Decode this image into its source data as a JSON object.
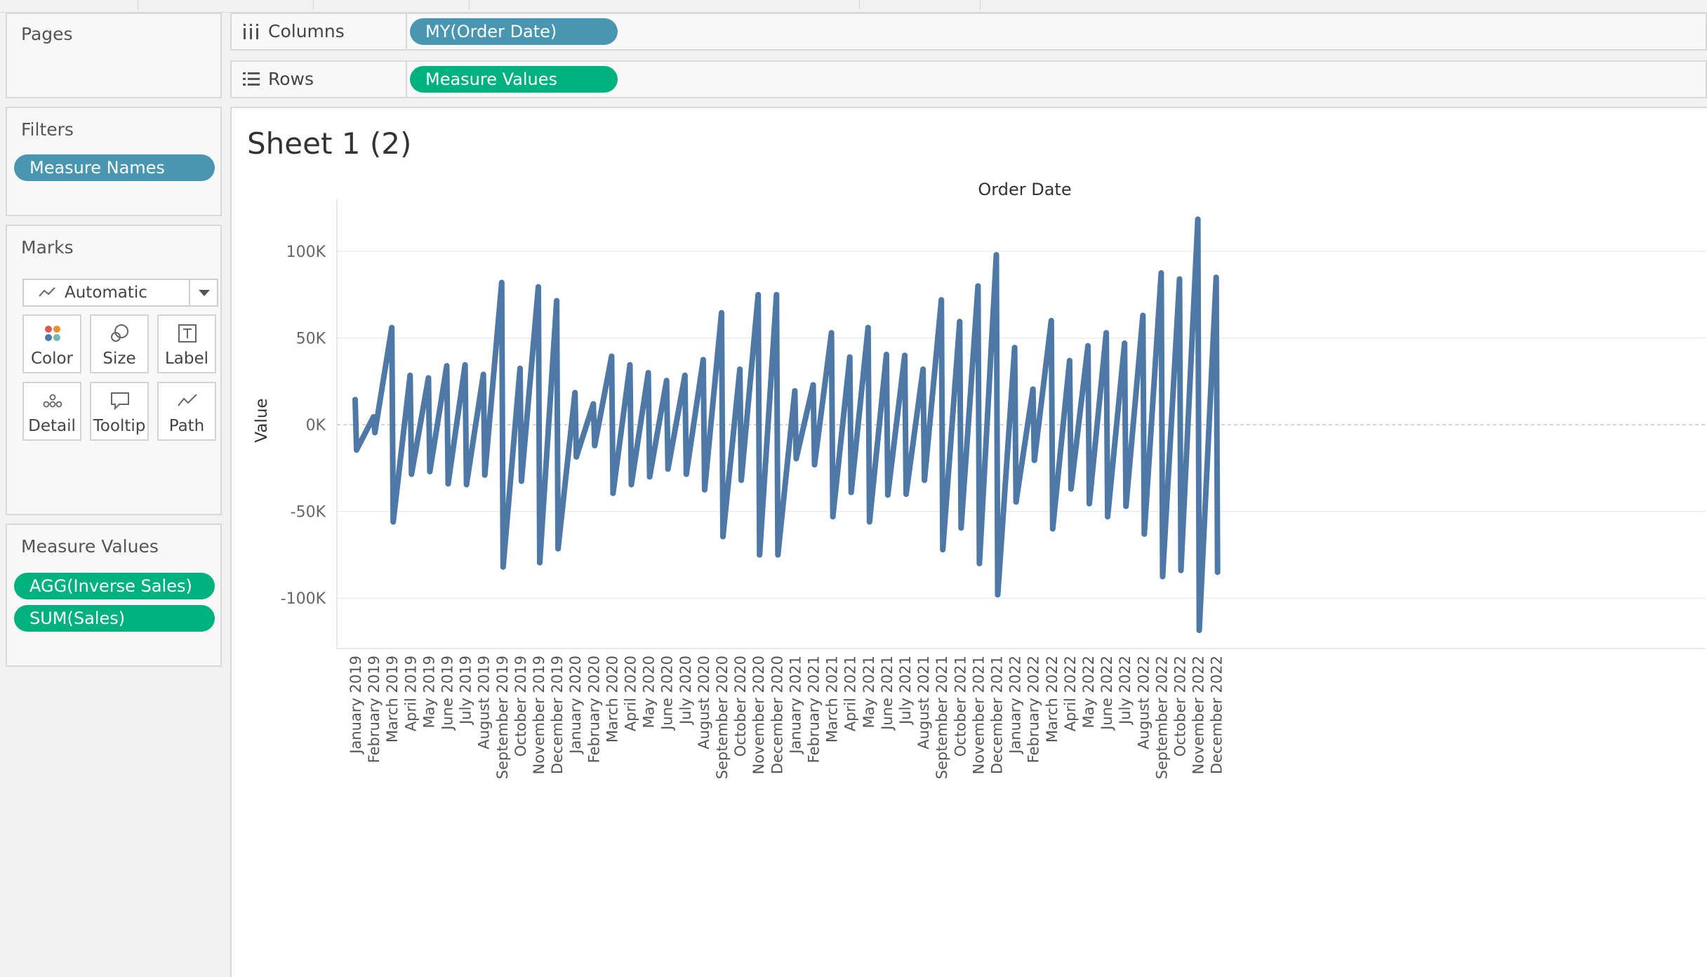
{
  "pages": {
    "title": "Pages"
  },
  "filters": {
    "title": "Filters",
    "pills": [
      "Measure Names"
    ]
  },
  "marks": {
    "title": "Marks",
    "type_label": "Automatic",
    "buttons": {
      "color": "Color",
      "size": "Size",
      "label": "Label",
      "detail": "Detail",
      "tooltip": "Tooltip",
      "path": "Path"
    }
  },
  "measure_values": {
    "title": "Measure Values",
    "pills": [
      "AGG(Inverse Sales)",
      "SUM(Sales)"
    ]
  },
  "shelves": {
    "columns": {
      "label": "Columns",
      "pill": "MY(Order Date)"
    },
    "rows": {
      "label": "Rows",
      "pill": "Measure Values"
    }
  },
  "sheet": {
    "title": "Sheet 1 (2)"
  },
  "colors": {
    "line": "#4e79a7",
    "pill_blue": "#4996b2",
    "pill_green": "#00b180"
  },
  "chart_data": {
    "type": "line",
    "title": "",
    "column_header": "Order Date",
    "ylabel": "Value",
    "xlabel": "",
    "ylim": [
      -125000,
      130000
    ],
    "yticks": [
      100000,
      50000,
      0,
      -50000,
      -100000
    ],
    "ytick_labels": [
      "100K",
      "50K",
      "0K",
      "-50K",
      "-100K"
    ],
    "grid": true,
    "categories": [
      "January 2019",
      "February 2019",
      "March 2019",
      "April 2019",
      "May 2019",
      "June 2019",
      "July 2019",
      "August 2019",
      "September 2019",
      "October 2019",
      "November 2019",
      "December 2019",
      "January 2020",
      "February 2020",
      "March 2020",
      "April 2020",
      "May 2020",
      "June 2020",
      "July 2020",
      "August 2020",
      "September 2020",
      "October 2020",
      "November 2020",
      "December 2020",
      "January 2021",
      "February 2021",
      "March 2021",
      "April 2021",
      "May 2021",
      "June 2021",
      "July 2021",
      "August 2021",
      "September 2021",
      "October 2021",
      "November 2021",
      "December 2021",
      "January 2022",
      "February 2022",
      "March 2022",
      "April 2022",
      "May 2022",
      "June 2022",
      "July 2022",
      "August 2022",
      "September 2022",
      "October 2022",
      "November 2022",
      "December 2022"
    ],
    "series": [
      {
        "name": "SUM(Sales)",
        "values": [
          14500,
          4500,
          56000,
          28500,
          27000,
          34000,
          34500,
          29000,
          82000,
          32500,
          79500,
          71500,
          18500,
          12000,
          39500,
          34500,
          30000,
          25500,
          28500,
          37500,
          64500,
          32000,
          75000,
          75000,
          19500,
          23000,
          53000,
          39000,
          56000,
          40500,
          40000,
          32000,
          72000,
          59500,
          80000,
          98000,
          44500,
          20500,
          60000,
          37000,
          45500,
          53000,
          47000,
          63000,
          87500,
          84000,
          118500,
          85000
        ]
      },
      {
        "name": "AGG(Inverse Sales)",
        "values": [
          -14500,
          -4500,
          -56000,
          -28500,
          -27000,
          -34000,
          -34500,
          -29000,
          -82000,
          -32500,
          -79500,
          -71500,
          -18500,
          -12000,
          -39500,
          -34500,
          -30000,
          -25500,
          -28500,
          -37500,
          -64500,
          -32000,
          -75000,
          -75000,
          -19500,
          -23000,
          -53000,
          -39000,
          -56000,
          -40500,
          -40000,
          -32000,
          -72000,
          -59500,
          -80000,
          -98000,
          -44500,
          -20500,
          -60000,
          -37000,
          -45500,
          -53000,
          -47000,
          -63000,
          -87500,
          -84000,
          -118500,
          -85000
        ]
      }
    ]
  }
}
